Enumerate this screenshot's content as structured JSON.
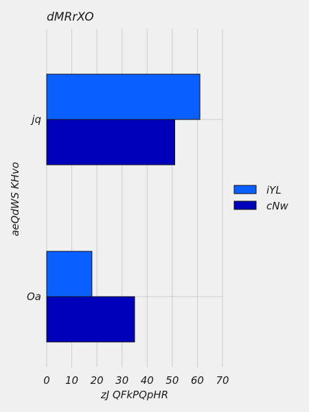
{
  "chart_data": {
    "type": "bar",
    "orientation": "horizontal",
    "title": "dMRrXO",
    "xlabel": "zJ QFkPQpHR",
    "ylabel": "aeQdWS KHvo",
    "categories": [
      "jq",
      "Oa"
    ],
    "series": [
      {
        "name": "iYL",
        "values": [
          61,
          18
        ],
        "color": "#0a60ff"
      },
      {
        "name": "cNw",
        "values": [
          51,
          35
        ],
        "color": "#0000bb"
      }
    ],
    "xlim": [
      0,
      70
    ],
    "xticks": [
      "0",
      "10",
      "20",
      "30",
      "40",
      "50",
      "60",
      "70"
    ],
    "grid": true,
    "legend_position": "right"
  }
}
